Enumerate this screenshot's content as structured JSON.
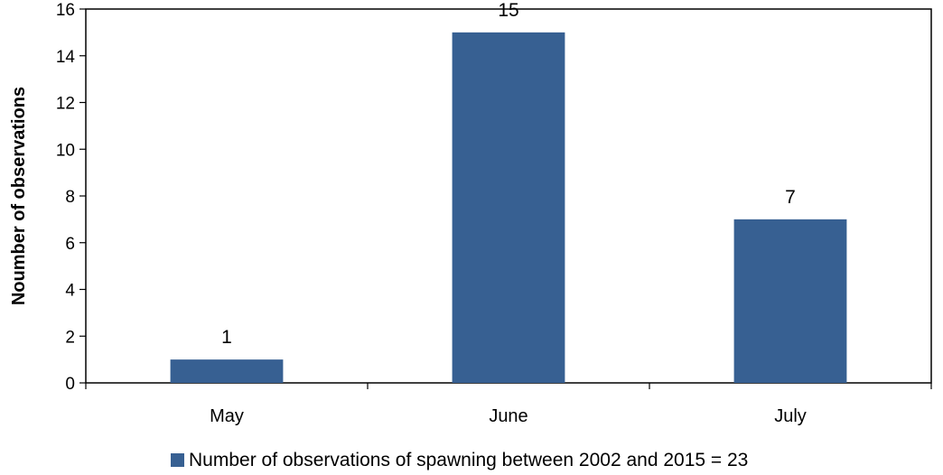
{
  "chart_data": {
    "type": "bar",
    "categories": [
      "May",
      "June",
      "July"
    ],
    "series": [
      {
        "name": "Number of observations of spawning between 2002 and 2015 = 23",
        "values": [
          1,
          15,
          7
        ],
        "color": "#376092"
      }
    ],
    "ylabel": "Noumber of observations",
    "xlabel": "",
    "ylim": [
      0,
      16
    ],
    "yticks": [
      0,
      2,
      4,
      6,
      8,
      10,
      12,
      14,
      16
    ],
    "data_labels": true,
    "grid": false,
    "legend_position": "bottom"
  }
}
